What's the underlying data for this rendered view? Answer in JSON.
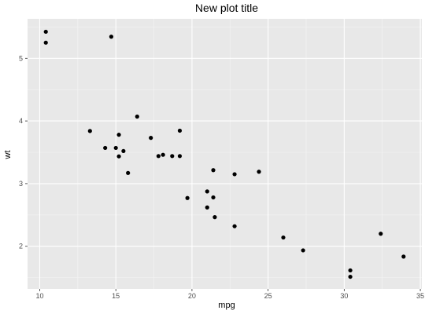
{
  "chart_data": {
    "type": "scatter",
    "title": "New plot title",
    "xlabel": "mpg",
    "ylabel": "wt",
    "xlim": [
      9.2,
      35.1
    ],
    "ylim": [
      1.32,
      5.63
    ],
    "x_ticks": [
      10,
      15,
      20,
      25,
      30,
      35
    ],
    "y_ticks": [
      2,
      3,
      4,
      5
    ],
    "x_tick_labels": [
      "10",
      "15",
      "20",
      "25",
      "30",
      "35"
    ],
    "y_tick_labels": [
      "2",
      "3",
      "4",
      "5"
    ],
    "grid": true,
    "panel_background": "#e8e8e8",
    "grid_major_color": "#ffffff",
    "grid_minor_color": "#f4f4f4",
    "point_color": "#000000",
    "points": [
      {
        "x": 10.4,
        "y": 5.424
      },
      {
        "x": 10.4,
        "y": 5.25
      },
      {
        "x": 14.7,
        "y": 5.345
      },
      {
        "x": 13.3,
        "y": 3.84
      },
      {
        "x": 14.3,
        "y": 3.57
      },
      {
        "x": 15.0,
        "y": 3.57
      },
      {
        "x": 15.2,
        "y": 3.78
      },
      {
        "x": 15.2,
        "y": 3.435
      },
      {
        "x": 15.5,
        "y": 3.52
      },
      {
        "x": 15.8,
        "y": 3.17
      },
      {
        "x": 16.4,
        "y": 4.07
      },
      {
        "x": 17.3,
        "y": 3.73
      },
      {
        "x": 17.8,
        "y": 3.44
      },
      {
        "x": 18.1,
        "y": 3.46
      },
      {
        "x": 18.7,
        "y": 3.44
      },
      {
        "x": 19.2,
        "y": 3.845
      },
      {
        "x": 19.2,
        "y": 3.44
      },
      {
        "x": 19.7,
        "y": 2.77
      },
      {
        "x": 21.0,
        "y": 2.875
      },
      {
        "x": 21.0,
        "y": 2.62
      },
      {
        "x": 21.4,
        "y": 3.215
      },
      {
        "x": 21.4,
        "y": 2.78
      },
      {
        "x": 21.5,
        "y": 2.465
      },
      {
        "x": 22.8,
        "y": 3.15
      },
      {
        "x": 22.8,
        "y": 2.32
      },
      {
        "x": 24.4,
        "y": 3.19
      },
      {
        "x": 26.0,
        "y": 2.14
      },
      {
        "x": 27.3,
        "y": 1.935
      },
      {
        "x": 30.4,
        "y": 1.615
      },
      {
        "x": 30.4,
        "y": 1.513
      },
      {
        "x": 32.4,
        "y": 2.2
      },
      {
        "x": 33.9,
        "y": 1.835
      }
    ]
  }
}
